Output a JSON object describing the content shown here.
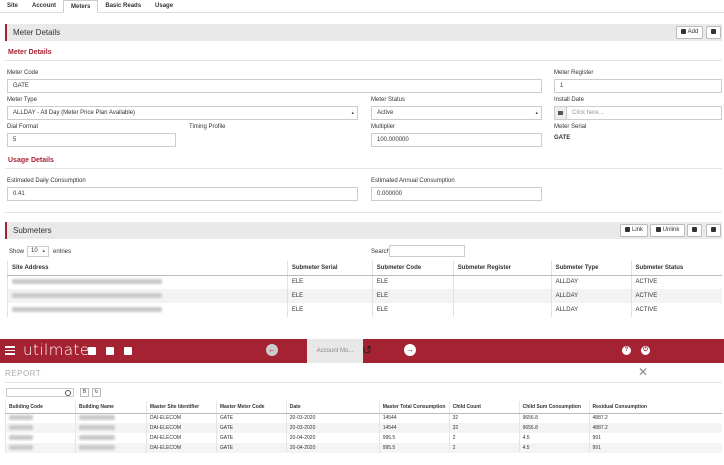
{
  "tabs": [
    {
      "label": "Site"
    },
    {
      "label": "Account"
    },
    {
      "label": "Meters"
    },
    {
      "label": "Basic Reads"
    },
    {
      "label": "Usage"
    }
  ],
  "meter_details": {
    "panel_title": "Meter Details",
    "add_label": "Add",
    "section_title": "Meter Details",
    "meter_code_label": "Meter Code",
    "meter_code_value": "GATE",
    "meter_register_label": "Meter Register",
    "meter_register_value": "1",
    "meter_type_label": "Meter Type",
    "meter_type_value": "ALLDAY - All Day (Meter Price Plan Available)",
    "meter_status_label": "Meter Status",
    "meter_status_value": "Active",
    "install_date_label": "Install Date",
    "install_date_placeholder": "Click here...",
    "dial_format_label": "Dial Format",
    "dial_format_value": "5",
    "timing_profile_label": "Timing Profile",
    "multiplier_label": "Multiplier",
    "multiplier_value": "100.000000",
    "meter_serial_label": "Meter Serial",
    "meter_serial_value": "GATE"
  },
  "usage_details": {
    "section_title": "Usage Details",
    "daily_label": "Estimated Daily Consumption",
    "daily_value": "0.41",
    "annual_label": "Estimated Annual Consumption",
    "annual_value": "0.000000"
  },
  "submeters": {
    "panel_title": "Submeters",
    "link_label": "Link",
    "unlink_label": "Unlink",
    "show_label": "Show",
    "entries_value": "10",
    "entries_label": "entries",
    "search_label": "Search:",
    "columns": [
      "Site Address",
      "Submeter Serial",
      "Submeter Code",
      "Submeter Register",
      "Submeter Type",
      "Submeter Status"
    ],
    "rows": [
      {
        "serial": "ELE",
        "code": "ELE",
        "register": "",
        "type": "ALLDAY",
        "status": "ACTIVE"
      },
      {
        "serial": "ELE",
        "code": "ELE",
        "register": "",
        "type": "ALLDAY",
        "status": "ACTIVE"
      },
      {
        "serial": "ELE",
        "code": "ELE",
        "register": "",
        "type": "ALLDAY",
        "status": "ACTIVE"
      }
    ]
  },
  "appbar": {
    "logo": "utilmate",
    "account_text": "Account Mo..."
  },
  "report": {
    "title": "REPORT",
    "columns": [
      "Building Code",
      "Building Name",
      "Master Site Identifier",
      "Master Meter Code",
      "Date",
      "Master Total Consumption",
      "Child Count",
      "Child Sum Consumption",
      "Residual Consumption"
    ],
    "rows": [
      {
        "site": "DAI-ELECOM",
        "meter": "GATE",
        "date": "20-03-2020",
        "total": "14544",
        "count": "32",
        "child_sum": "9656.8",
        "residual": "4887.2"
      },
      {
        "site": "DAI-ELECOM",
        "meter": "GATE",
        "date": "20-03-2020",
        "total": "14544",
        "count": "32",
        "child_sum": "9656.8",
        "residual": "4887.2"
      },
      {
        "site": "DAI-ELECOM",
        "meter": "GATE",
        "date": "20-04-2020",
        "total": "995.5",
        "count": "2",
        "child_sum": "4.5",
        "residual": "991"
      },
      {
        "site": "DAI-ELECOM",
        "meter": "GATE",
        "date": "20-04-2020",
        "total": "995.5",
        "count": "2",
        "child_sum": "4.5",
        "residual": "991"
      }
    ]
  },
  "colors": {
    "brand": "#a52233",
    "section_title": "#a52233"
  }
}
